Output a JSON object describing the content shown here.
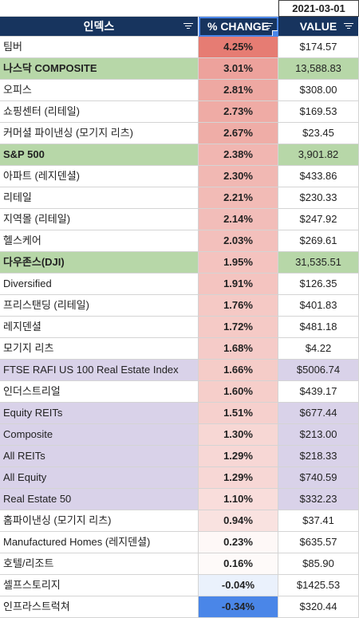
{
  "date": "2021-03-01",
  "headers": {
    "index": "인덱스",
    "change": "% CHANGE",
    "value": "VALUE"
  },
  "header_color": "#17345e",
  "accent_colors": {
    "index_rows": "#b7d7a8",
    "reit_rows": "#d9d2e9",
    "positive_max": "#e67c73",
    "negative": "#4a86e8"
  },
  "rows": [
    {
      "name": "팀버",
      "change": "4.25%",
      "value": "$174.57",
      "pct": 4.25,
      "group": "none"
    },
    {
      "name": "나스닥 COMPOSITE",
      "change": "3.01%",
      "value": "13,588.83",
      "pct": 3.01,
      "group": "index"
    },
    {
      "name": "오피스",
      "change": "2.81%",
      "value": "$308.00",
      "pct": 2.81,
      "group": "none"
    },
    {
      "name": "쇼핑센터 (리테일)",
      "change": "2.73%",
      "value": "$169.53",
      "pct": 2.73,
      "group": "none"
    },
    {
      "name": "커머셜 파이낸싱 (모기지 리츠)",
      "change": "2.67%",
      "value": "$23.45",
      "pct": 2.67,
      "group": "none"
    },
    {
      "name": "S&P 500",
      "change": "2.38%",
      "value": "3,901.82",
      "pct": 2.38,
      "group": "index"
    },
    {
      "name": "아파트 (레지덴셜)",
      "change": "2.30%",
      "value": "$433.86",
      "pct": 2.3,
      "group": "none"
    },
    {
      "name": "리테일",
      "change": "2.21%",
      "value": "$230.33",
      "pct": 2.21,
      "group": "none"
    },
    {
      "name": "지역몰 (리테일)",
      "change": "2.14%",
      "value": "$247.92",
      "pct": 2.14,
      "group": "none"
    },
    {
      "name": "헬스케어",
      "change": "2.03%",
      "value": "$269.61",
      "pct": 2.03,
      "group": "none"
    },
    {
      "name": "다우존스(DJI)",
      "change": "1.95%",
      "value": "31,535.51",
      "pct": 1.95,
      "group": "index"
    },
    {
      "name": "Diversified",
      "change": "1.91%",
      "value": "$126.35",
      "pct": 1.91,
      "group": "none"
    },
    {
      "name": "프리스탠딩 (리테일)",
      "change": "1.76%",
      "value": "$401.83",
      "pct": 1.76,
      "group": "none"
    },
    {
      "name": "레지덴셜",
      "change": "1.72%",
      "value": "$481.18",
      "pct": 1.72,
      "group": "none"
    },
    {
      "name": "모기지 리츠",
      "change": "1.68%",
      "value": "$4.22",
      "pct": 1.68,
      "group": "none"
    },
    {
      "name": "FTSE RAFI US 100 Real Estate Index",
      "change": "1.66%",
      "value": "$5006.74",
      "pct": 1.66,
      "group": "reit"
    },
    {
      "name": "인더스트리얼",
      "change": "1.60%",
      "value": "$439.17",
      "pct": 1.6,
      "group": "none"
    },
    {
      "name": "Equity REITs",
      "change": "1.51%",
      "value": "$677.44",
      "pct": 1.51,
      "group": "reit"
    },
    {
      "name": "Composite",
      "change": "1.30%",
      "value": "$213.00",
      "pct": 1.3,
      "group": "reit"
    },
    {
      "name": "All REITs",
      "change": "1.29%",
      "value": "$218.33",
      "pct": 1.29,
      "group": "reit"
    },
    {
      "name": "All Equity",
      "change": "1.29%",
      "value": "$740.59",
      "pct": 1.29,
      "group": "reit"
    },
    {
      "name": "Real Estate 50",
      "change": "1.10%",
      "value": "$332.23",
      "pct": 1.1,
      "group": "reit"
    },
    {
      "name": "홈파이낸싱 (모기지 리츠)",
      "change": "0.94%",
      "value": "$37.41",
      "pct": 0.94,
      "group": "none"
    },
    {
      "name": "Manufactured Homes (레지덴셜)",
      "change": "0.23%",
      "value": "$635.57",
      "pct": 0.23,
      "group": "none"
    },
    {
      "name": "호텔/리조트",
      "change": "0.16%",
      "value": "$85.90",
      "pct": 0.16,
      "group": "none"
    },
    {
      "name": "셀프스토리지",
      "change": "-0.04%",
      "value": "$1425.53",
      "pct": -0.04,
      "group": "none"
    },
    {
      "name": "인프라스트럭쳐",
      "change": "-0.34%",
      "value": "$320.44",
      "pct": -0.34,
      "group": "none"
    }
  ]
}
